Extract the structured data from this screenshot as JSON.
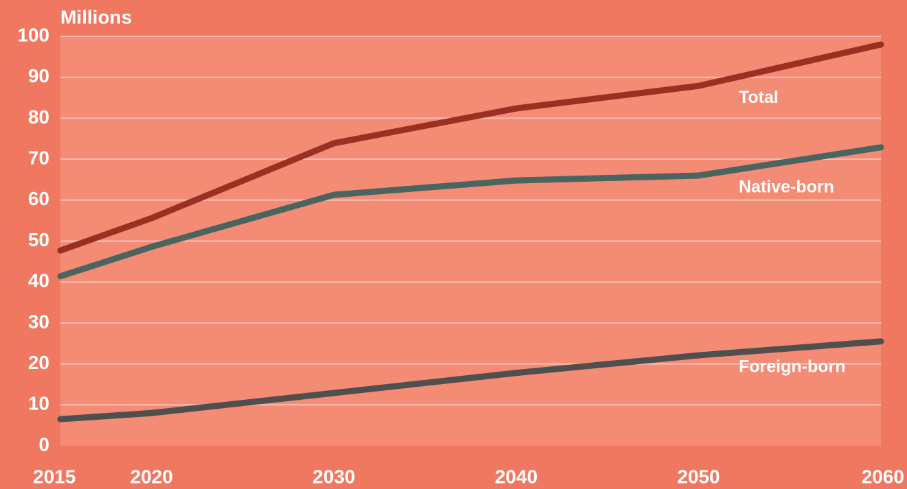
{
  "chart_data": {
    "type": "line",
    "y_label": "Millions",
    "x": [
      2015,
      2020,
      2030,
      2040,
      2050,
      2060
    ],
    "xlim": [
      2015,
      2060
    ],
    "xticks": [
      2015,
      2020,
      2030,
      2040,
      2050,
      2060
    ],
    "ylim": [
      0,
      100
    ],
    "yticks": [
      0,
      10,
      20,
      30,
      40,
      50,
      60,
      70,
      80,
      90,
      100
    ],
    "grid": true,
    "series": [
      {
        "name": "Total",
        "color": "#9b3022",
        "values": [
          47.7,
          55.6,
          73.9,
          82.4,
          87.9,
          98.0
        ]
      },
      {
        "name": "Native-born",
        "color": "#4a6560",
        "values": [
          41.4,
          48.6,
          61.3,
          64.8,
          66.0,
          72.9
        ]
      },
      {
        "name": "Foreign-born",
        "color": "#4f4f4f",
        "values": [
          6.5,
          8.0,
          12.9,
          17.8,
          22.1,
          25.5
        ]
      }
    ]
  }
}
